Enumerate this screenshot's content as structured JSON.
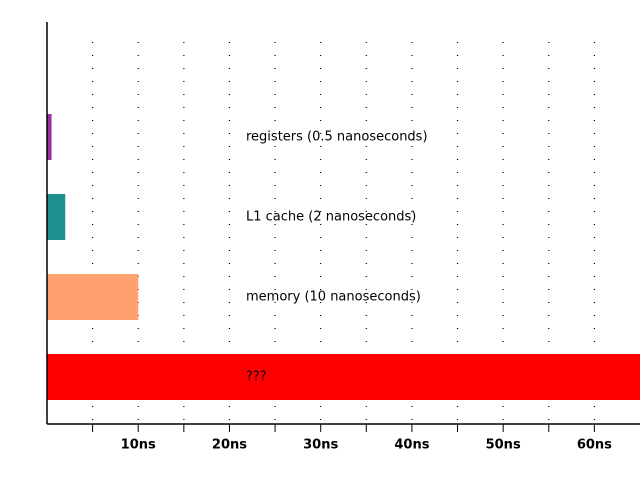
{
  "chart_data": {
    "type": "hbar",
    "categories": [
      "registers (0.5 nanoseconds)",
      "L1 cache (2 nanoseconds)",
      "memory (10 nanoseconds)",
      "???"
    ],
    "values": [
      0.5,
      2,
      10,
      65
    ],
    "colors": [
      "#9b30a0",
      "#1f8f8f",
      "#ffa070",
      "#ff0000"
    ],
    "xlim": [
      0,
      65
    ],
    "xticks": [
      {
        "value": 10,
        "label": "10ns"
      },
      {
        "value": 20,
        "label": "20ns"
      },
      {
        "value": 30,
        "label": "30ns"
      },
      {
        "value": 40,
        "label": "40ns"
      },
      {
        "value": 50,
        "label": "50ns"
      },
      {
        "value": 60,
        "label": "60ns"
      }
    ],
    "xticks_minor": [
      5,
      15,
      25,
      35,
      45,
      55
    ],
    "grid": true
  }
}
